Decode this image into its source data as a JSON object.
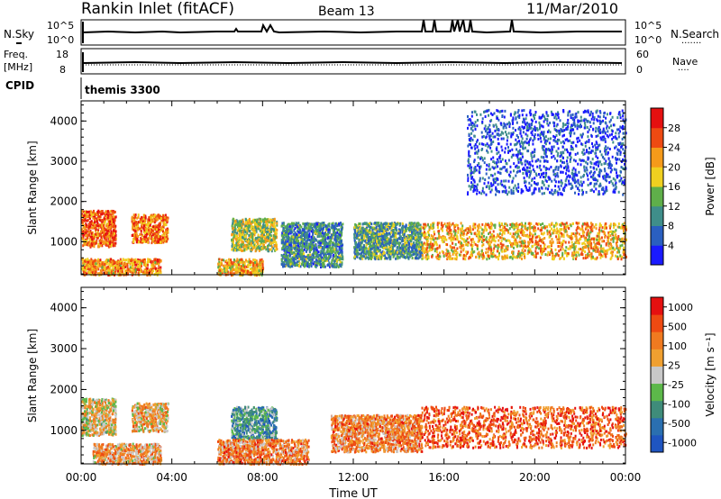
{
  "header": {
    "station": "Rankin Inlet (fitACF)",
    "beam": "Beam 13",
    "date": "11/Mar/2010"
  },
  "panels": {
    "nsky_label": "N.Sky",
    "nsearch_label": "N.Search",
    "nsearch_marker": "·······",
    "freq_label": "Freq.",
    "freq_unit": "[MHz]",
    "nave_label": "Nave",
    "nave_marker": "····",
    "cpid_label": "CPID",
    "cpid_value": "themis 3300",
    "nsky_ticks": [
      "10^5",
      "10^0"
    ],
    "nsearch_ticks": [
      "10^5",
      "10^0"
    ],
    "freq_ticks": [
      "18",
      "8"
    ],
    "nave_ticks": [
      "60",
      "0"
    ]
  },
  "chart_data": [
    {
      "type": "heatmap",
      "title": "",
      "xlabel": "",
      "ylabel": "Slant Range [km]",
      "xlim": [
        0,
        24
      ],
      "ylim": [
        180,
        4500
      ],
      "yticks": [
        "1000",
        "2000",
        "3000",
        "4000"
      ],
      "colorbar_label": "Power [dB]",
      "colorbar_ticks": [
        "4",
        "8",
        "12",
        "16",
        "20",
        "24",
        "28"
      ],
      "colorbar_colors": [
        "#1a1aff",
        "#2a5fc0",
        "#3f8e8a",
        "#5faf4a",
        "#f0d020",
        "#f59a1a",
        "#ee4a12",
        "#e51010"
      ],
      "regions": [
        {
          "x": [
            0.0,
            1.5
          ],
          "y": [
            900,
            1800
          ],
          "level": 0.8
        },
        {
          "x": [
            2.2,
            3.8
          ],
          "y": [
            1000,
            1700
          ],
          "level": 0.75
        },
        {
          "x": [
            6.6,
            8.6
          ],
          "y": [
            800,
            1600
          ],
          "level": 0.5
        },
        {
          "x": [
            8.8,
            11.5
          ],
          "y": [
            400,
            1500
          ],
          "level": 0.3
        },
        {
          "x": [
            12.0,
            15.0
          ],
          "y": [
            600,
            1500
          ],
          "level": 0.35
        },
        {
          "x": [
            15.0,
            24.0
          ],
          "y": [
            600,
            1500
          ],
          "level": 0.65
        },
        {
          "x": [
            0.0,
            3.5
          ],
          "y": [
            200,
            600
          ],
          "level": 0.7
        },
        {
          "x": [
            6.0,
            8.0
          ],
          "y": [
            200,
            600
          ],
          "level": 0.65
        },
        {
          "x": [
            17.0,
            24.0
          ],
          "y": [
            2200,
            4300
          ],
          "level": 0.15
        }
      ]
    },
    {
      "type": "heatmap",
      "title": "",
      "xlabel": "Time UT",
      "ylabel": "Slant Range [km]",
      "xlim": [
        0,
        24
      ],
      "ylim": [
        180,
        4500
      ],
      "xticks": [
        "00:00",
        "04:00",
        "08:00",
        "12:00",
        "16:00",
        "20:00",
        "00:00"
      ],
      "yticks": [
        "1000",
        "2000",
        "3000",
        "4000"
      ],
      "colorbar_label": "Velocity [m s⁻¹]",
      "colorbar_ticks": [
        "1000",
        "500",
        "100",
        "25",
        "-25",
        "-100",
        "-500",
        "-1000"
      ],
      "colorbar_colors": [
        "#1f55c0",
        "#2a6fb0",
        "#3f8c7a",
        "#5cb84a",
        "#c8c8c8",
        "#f0a030",
        "#f07a20",
        "#ee4a12",
        "#e51010"
      ],
      "regions": [
        {
          "x": [
            0.0,
            1.5
          ],
          "y": [
            900,
            1800
          ],
          "level": 0.55
        },
        {
          "x": [
            2.2,
            3.8
          ],
          "y": [
            1000,
            1700
          ],
          "level": 0.6
        },
        {
          "x": [
            6.6,
            8.6
          ],
          "y": [
            800,
            1600
          ],
          "level": 0.3
        },
        {
          "x": [
            11.0,
            15.0
          ],
          "y": [
            500,
            1400
          ],
          "level": 0.7
        },
        {
          "x": [
            15.0,
            24.0
          ],
          "y": [
            600,
            1600
          ],
          "level": 0.8
        },
        {
          "x": [
            0.5,
            3.5
          ],
          "y": [
            200,
            700
          ],
          "level": 0.65
        },
        {
          "x": [
            6.0,
            10.0
          ],
          "y": [
            200,
            800
          ],
          "level": 0.7
        }
      ]
    }
  ]
}
